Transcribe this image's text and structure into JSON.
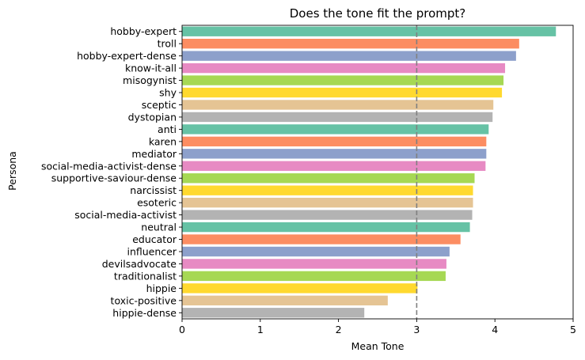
{
  "chart_data": {
    "type": "bar",
    "orientation": "horizontal",
    "title": "Does the tone fit the prompt?",
    "xlabel": "Mean Tone",
    "ylabel": "Persona",
    "xlim": [
      0,
      5
    ],
    "xticks": [
      "0",
      "1",
      "2",
      "3",
      "4",
      "5"
    ],
    "reference_line": {
      "x": 3,
      "style": "dashed",
      "color": "#808080"
    },
    "grid": false,
    "categories": [
      "hobby-expert",
      "troll",
      "hobby-expert-dense",
      "know-it-all",
      "misogynist",
      "shy",
      "sceptic",
      "dystopian",
      "anti",
      "karen",
      "mediator",
      "social-media-activist-dense",
      "supportive-saviour-dense",
      "narcissist",
      "esoteric",
      "social-media-activist",
      "neutral",
      "educator",
      "influencer",
      "devilsadvocate",
      "traditionalist",
      "hippie",
      "toxic-positive",
      "hippie-dense"
    ],
    "values": [
      4.78,
      4.31,
      4.27,
      4.13,
      4.11,
      4.09,
      3.98,
      3.97,
      3.92,
      3.89,
      3.89,
      3.88,
      3.74,
      3.72,
      3.72,
      3.71,
      3.68,
      3.56,
      3.42,
      3.38,
      3.37,
      3.01,
      2.63,
      2.33
    ],
    "palette": [
      "#66c2a5",
      "#fc8d62",
      "#8da0cb",
      "#e78ac3",
      "#a6d854",
      "#ffd92f",
      "#e5c494",
      "#b3b3b3"
    ]
  }
}
